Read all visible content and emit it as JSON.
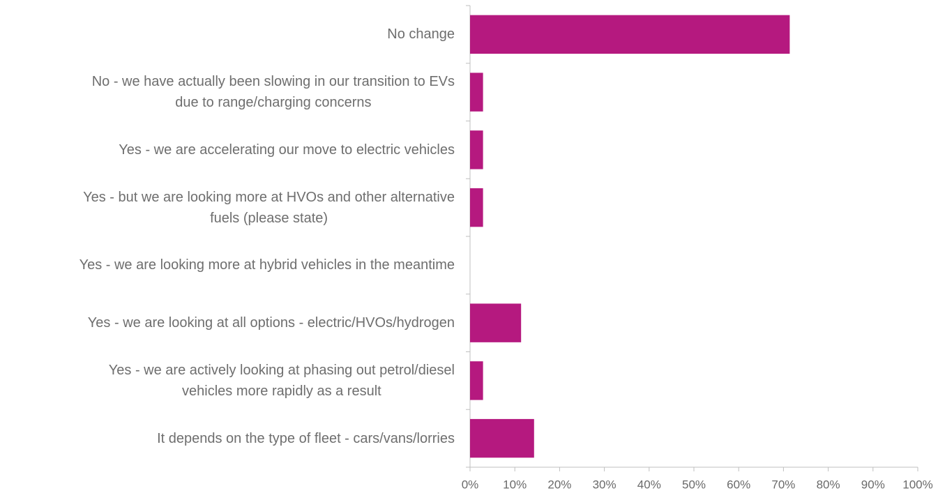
{
  "chart_data": {
    "type": "hbar",
    "categories": [
      "No change",
      "No - we have actually been slowing in our transition to EVs\ndue to range/charging concerns",
      "Yes - we are accelerating our move to electric vehicles",
      "Yes - but we are looking more at HVOs and other alternative\nfuels (please state)",
      "Yes - we are looking more at hybrid vehicles in the meantime",
      "Yes - we are looking at all options - electric/HVOs/hydrogen",
      "Yes - we are actively looking at phasing out petrol/diesel\nvehicles more rapidly as a result",
      "It depends on the type of fleet - cars/vans/lorries"
    ],
    "values": [
      71.4,
      2.9,
      2.9,
      2.9,
      0,
      11.4,
      2.9,
      14.3
    ],
    "color": "#b5197f",
    "xlim": [
      0,
      100
    ],
    "xticks": [
      {
        "value": 0,
        "label": "0%"
      },
      {
        "value": 10,
        "label": "10%"
      },
      {
        "value": 20,
        "label": "20%"
      },
      {
        "value": 30,
        "label": "30%"
      },
      {
        "value": 40,
        "label": "40%"
      },
      {
        "value": 50,
        "label": "50%"
      },
      {
        "value": 60,
        "label": "60%"
      },
      {
        "value": 70,
        "label": "70%"
      },
      {
        "value": 80,
        "label": "80%"
      },
      {
        "value": 90,
        "label": "90%"
      },
      {
        "value": 100,
        "label": "100%"
      }
    ],
    "grid": false
  }
}
